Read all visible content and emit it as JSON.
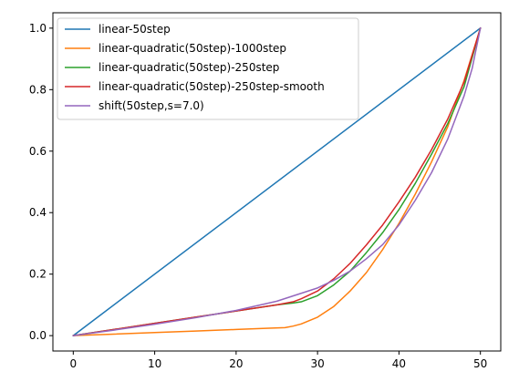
{
  "chart_data": {
    "type": "line",
    "title": "",
    "xlabel": "",
    "ylabel": "",
    "xlim": [
      -2.5,
      52.5
    ],
    "ylim": [
      -0.05,
      1.05
    ],
    "xticks": [
      0,
      10,
      20,
      30,
      40,
      50
    ],
    "xtick_labels": [
      "0",
      "10",
      "20",
      "30",
      "40",
      "50"
    ],
    "yticks": [
      0.0,
      0.2,
      0.4,
      0.6,
      0.8,
      1.0
    ],
    "ytick_labels": [
      "0.0",
      "0.2",
      "0.4",
      "0.6",
      "0.8",
      "1.0"
    ],
    "grid": false,
    "legend_position": "upper-left",
    "series": [
      {
        "name": "linear-50step",
        "color": "#1f77b4",
        "x": [
          0,
          50
        ],
        "y": [
          0.0,
          1.0
        ]
      },
      {
        "name": "linear-quadratic(50step)-1000step",
        "color": "#ff7f0e",
        "x": [
          0,
          5,
          10,
          15,
          20,
          24,
          26,
          27,
          28,
          30,
          32,
          34,
          36,
          38,
          40,
          42,
          44,
          46,
          48,
          50
        ],
        "y": [
          0.0,
          0.005,
          0.01,
          0.015,
          0.02,
          0.024,
          0.026,
          0.031,
          0.038,
          0.06,
          0.095,
          0.145,
          0.205,
          0.28,
          0.365,
          0.46,
          0.565,
          0.68,
          0.83,
          1.0
        ]
      },
      {
        "name": "linear-quadratic(50step)-250step",
        "color": "#2ca02c",
        "x": [
          0,
          5,
          10,
          15,
          20,
          25,
          27,
          28,
          30,
          32,
          34,
          36,
          38,
          40,
          42,
          44,
          46,
          48,
          50
        ],
        "y": [
          0.0,
          0.02,
          0.04,
          0.06,
          0.08,
          0.1,
          0.106,
          0.11,
          0.13,
          0.165,
          0.21,
          0.27,
          0.335,
          0.41,
          0.495,
          0.59,
          0.69,
          0.81,
          1.0
        ]
      },
      {
        "name": "linear-quadratic(50step)-250step-smooth",
        "color": "#d62728",
        "x": [
          0,
          5,
          10,
          15,
          20,
          25,
          27,
          28,
          30,
          32,
          34,
          36,
          38,
          40,
          42,
          44,
          46,
          48,
          50
        ],
        "y": [
          0.0,
          0.02,
          0.04,
          0.06,
          0.08,
          0.1,
          0.11,
          0.12,
          0.145,
          0.185,
          0.235,
          0.295,
          0.36,
          0.435,
          0.515,
          0.605,
          0.705,
          0.825,
          1.0
        ]
      },
      {
        "name": "shift(50step,s=7.0)",
        "color": "#9467bd",
        "x": [
          0,
          5,
          10,
          15,
          20,
          25,
          30,
          32,
          34,
          36,
          38,
          40,
          42,
          44,
          46,
          48,
          49,
          50
        ],
        "y": [
          0.0,
          0.018,
          0.037,
          0.058,
          0.082,
          0.112,
          0.155,
          0.18,
          0.21,
          0.25,
          0.296,
          0.36,
          0.44,
          0.53,
          0.64,
          0.78,
          0.87,
          1.0
        ]
      }
    ]
  }
}
